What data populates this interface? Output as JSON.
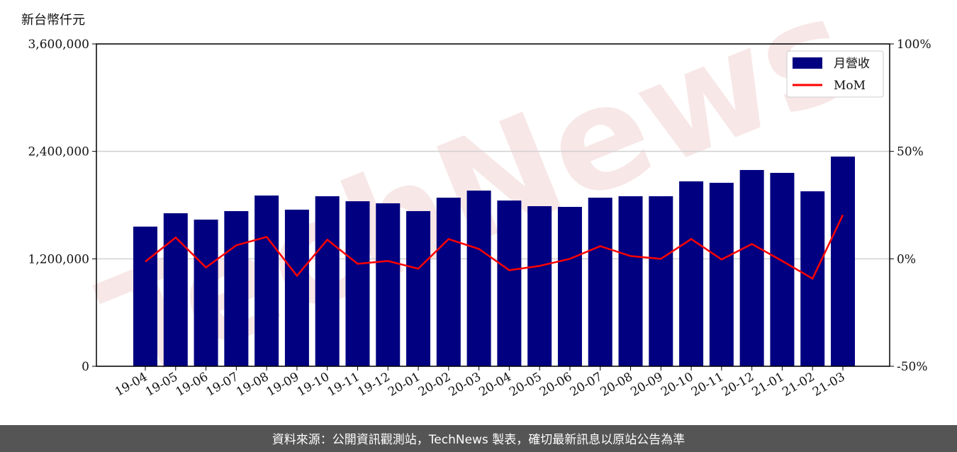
{
  "chart_data": {
    "type": "bar_line",
    "y_label": "新台幣仟元",
    "watermark": "TechNews",
    "footer": "資料來源：公開資訊觀測站，TechNews 製表，確切最新訊息以原站公告為準",
    "categories": [
      "19-04",
      "19-05",
      "19-06",
      "19-07",
      "19-08",
      "19-09",
      "19-10",
      "19-11",
      "19-12",
      "20-01",
      "20-02",
      "20-03",
      "20-04",
      "20-05",
      "20-06",
      "20-07",
      "20-08",
      "20-09",
      "20-10",
      "20-11",
      "20-12",
      "21-01",
      "21-02",
      "21-03"
    ],
    "series": [
      {
        "name": "月營收",
        "type": "bar",
        "color": "#000080",
        "values": [
          1560000,
          1709000,
          1638000,
          1733000,
          1907000,
          1749000,
          1899000,
          1843000,
          1820000,
          1733000,
          1883000,
          1962000,
          1851000,
          1788000,
          1780000,
          1883000,
          1899000,
          1899000,
          2065000,
          2049000,
          2192000,
          2160000,
          1954000,
          2342000
        ]
      },
      {
        "name": "MoM",
        "type": "line",
        "axis": "y2",
        "color": "#ff0000",
        "values": [
          -1.3,
          9.9,
          -4.0,
          6.3,
          10.2,
          -7.9,
          8.9,
          -2.3,
          -1.0,
          -4.6,
          9.2,
          4.6,
          -5.3,
          -3.3,
          0,
          5.9,
          1.3,
          0,
          9.2,
          -0.3,
          6.9,
          -1.0,
          -9.2,
          20.4
        ]
      }
    ],
    "ylim": [
      0,
      3600000
    ],
    "yticks": [
      0,
      {
        "value": 1200000,
        "label": "1,200,000"
      },
      {
        "value": 2400000,
        "label": "2,400,000"
      },
      {
        "value": 3600000,
        "label": "3,600,000"
      }
    ],
    "y2lim": [
      -50,
      100
    ],
    "y2ticks": [
      {
        "value": -50,
        "label": "-50%"
      },
      {
        "value": 0,
        "label": "0%"
      },
      {
        "value": 50,
        "label": "50%"
      },
      {
        "value": 100,
        "label": "100%"
      }
    ],
    "grid": true,
    "legend": "upper right"
  }
}
